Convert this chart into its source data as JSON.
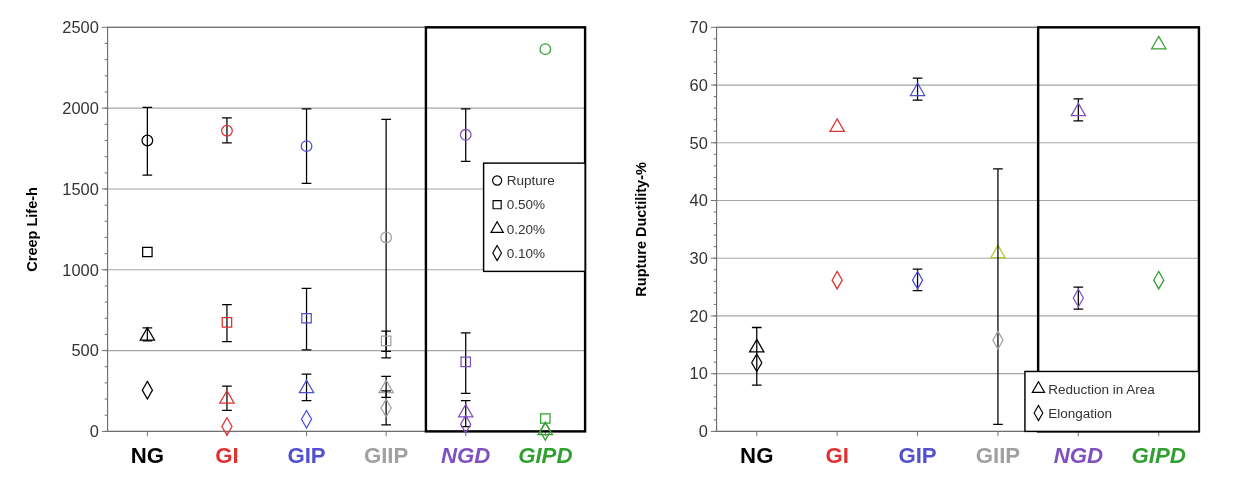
{
  "chart_data": [
    {
      "type": "scatter",
      "ylabel": "Creep Life-h",
      "categories": [
        "NG",
        "GI",
        "GIP",
        "GIIP",
        "NGD",
        "GIPD"
      ],
      "ylim": [
        0,
        2500
      ],
      "yticks": [
        0,
        500,
        1000,
        1500,
        2000,
        2500
      ],
      "grid": "y",
      "legend": "right",
      "series": [
        {
          "name": "Rupture",
          "marker": "circle",
          "values": [
            1800,
            1860,
            1765,
            1200,
            1835,
            2365
          ],
          "errors": [
            [
              1585,
              2005
            ],
            [
              1785,
              1940
            ],
            [
              1535,
              1995
            ],
            [
              495,
              1930
            ],
            [
              1670,
              1995
            ],
            null
          ],
          "colors": [
            "#000000",
            "#e03030",
            "#5050d0",
            "#a0a0a0",
            "#8050c0",
            "#30a030"
          ]
        },
        {
          "name": "0.50%",
          "marker": "square",
          "values": [
            1110,
            675,
            700,
            560,
            430,
            80
          ],
          "errors": [
            null,
            [
              555,
              785
            ],
            [
              505,
              885
            ],
            [
              455,
              620
            ],
            [
              235,
              610
            ],
            null
          ],
          "colors": [
            "#000000",
            "#e03030",
            "#5050d0",
            "#a0a0a0",
            "#8050c0",
            "#30a030"
          ]
        },
        {
          "name": "0.20%",
          "marker": "triangle",
          "values": [
            590,
            200,
            265,
            265,
            115,
            5
          ],
          "errors": [
            [
              560,
              640
            ],
            [
              130,
              280
            ],
            [
              190,
              355
            ],
            [
              210,
              340
            ],
            [
              30,
              190
            ],
            null
          ],
          "colors": [
            "#000000",
            "#e03030",
            "#5050d0",
            "#a0a0a0",
            "#8050c0",
            "#30a030"
          ]
        },
        {
          "name": "0.10%",
          "marker": "diamond",
          "values": [
            255,
            30,
            75,
            145,
            45,
            0
          ],
          "errors": [
            null,
            null,
            null,
            [
              40,
              250
            ],
            null,
            null
          ],
          "colors": [
            "#000000",
            "#e03030",
            "#5050d0",
            "#a0a0a0",
            "#8050c0",
            "#30a030"
          ]
        }
      ]
    },
    {
      "type": "scatter",
      "ylabel": "Rupture Ductility-%",
      "categories": [
        "NG",
        "GI",
        "GIP",
        "GIIP",
        "NGD",
        "GIPD"
      ],
      "ylim": [
        0,
        70
      ],
      "yticks": [
        0,
        10,
        20,
        30,
        40,
        50,
        60,
        70
      ],
      "grid": "y",
      "legend": "bottom right",
      "series": [
        {
          "name": "Reduction in Area",
          "marker": "triangle",
          "values": [
            14.5,
            52.7,
            58.9,
            30.8,
            55.4,
            67
          ],
          "errors": [
            null,
            null,
            [
              57.4,
              61.2
            ],
            null,
            [
              53.8,
              57.6
            ],
            null
          ],
          "colors": [
            "#000000",
            "#e03030",
            "#5050d0",
            "#aacc33",
            "#8050c0",
            "#30a030"
          ]
        },
        {
          "name": "Elongation",
          "marker": "diamond",
          "values": [
            11.9,
            26.2,
            26.2,
            15.8,
            23.1,
            26.2
          ],
          "errors": [
            [
              8,
              18
            ],
            null,
            [
              24.4,
              28.1
            ],
            [
              1.2,
              45.5
            ],
            [
              21.2,
              25
            ],
            null
          ],
          "colors": [
            "#000000",
            "#e03030",
            "#5050d0",
            "#a0a0a0",
            "#8050c0",
            "#30a030"
          ]
        }
      ]
    }
  ]
}
